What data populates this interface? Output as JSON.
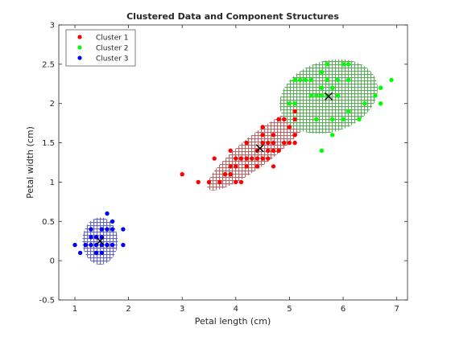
{
  "chart_data": {
    "type": "scatter",
    "title": "Clustered Data and Component Structures",
    "xlabel": "Petal length (cm)",
    "ylabel": "Petal width (cm)",
    "xlim": [
      0.7,
      7.2
    ],
    "ylim": [
      -0.5,
      3
    ],
    "xticks": [
      1,
      2,
      3,
      4,
      5,
      6,
      7
    ],
    "yticks": [
      -0.5,
      0,
      0.5,
      1,
      1.5,
      2,
      2.5,
      3
    ],
    "grid": false,
    "legend_position": "top-left",
    "series": [
      {
        "name": "Cluster 1",
        "color": "#ff0000",
        "points": [
          [
            3.0,
            1.1
          ],
          [
            3.3,
            1.0
          ],
          [
            3.5,
            1.0
          ],
          [
            3.6,
            1.3
          ],
          [
            3.7,
            1.0
          ],
          [
            3.8,
            1.1
          ],
          [
            3.9,
            1.1
          ],
          [
            3.9,
            1.2
          ],
          [
            3.9,
            1.4
          ],
          [
            4.0,
            1.0
          ],
          [
            4.0,
            1.2
          ],
          [
            4.0,
            1.3
          ],
          [
            4.1,
            1.0
          ],
          [
            4.1,
            1.3
          ],
          [
            4.2,
            1.2
          ],
          [
            4.2,
            1.3
          ],
          [
            4.2,
            1.5
          ],
          [
            4.3,
            1.3
          ],
          [
            4.4,
            1.2
          ],
          [
            4.4,
            1.3
          ],
          [
            4.4,
            1.4
          ],
          [
            4.5,
            1.3
          ],
          [
            4.5,
            1.5
          ],
          [
            4.5,
            1.6
          ],
          [
            4.5,
            1.7
          ],
          [
            4.6,
            1.3
          ],
          [
            4.6,
            1.4
          ],
          [
            4.6,
            1.5
          ],
          [
            4.7,
            1.2
          ],
          [
            4.7,
            1.4
          ],
          [
            4.7,
            1.5
          ],
          [
            4.7,
            1.6
          ],
          [
            4.8,
            1.4
          ],
          [
            4.8,
            1.8
          ],
          [
            4.9,
            1.5
          ],
          [
            4.9,
            1.8
          ],
          [
            5.0,
            1.5
          ],
          [
            5.0,
            1.7
          ],
          [
            5.1,
            1.5
          ],
          [
            5.1,
            1.6
          ],
          [
            5.1,
            1.9
          ],
          [
            5.1,
            1.8
          ]
        ]
      },
      {
        "name": "Cluster 2",
        "color": "#00ff00",
        "points": [
          [
            5.0,
            2.0
          ],
          [
            5.1,
            2.0
          ],
          [
            5.1,
            2.3
          ],
          [
            5.2,
            2.3
          ],
          [
            5.3,
            2.3
          ],
          [
            5.4,
            2.1
          ],
          [
            5.4,
            2.3
          ],
          [
            5.5,
            2.1
          ],
          [
            5.5,
            1.8
          ],
          [
            5.6,
            1.4
          ],
          [
            5.6,
            2.1
          ],
          [
            5.6,
            2.2
          ],
          [
            5.6,
            2.4
          ],
          [
            5.7,
            2.1
          ],
          [
            5.7,
            2.3
          ],
          [
            5.7,
            2.5
          ],
          [
            5.8,
            1.6
          ],
          [
            5.8,
            1.8
          ],
          [
            5.8,
            2.2
          ],
          [
            5.9,
            2.1
          ],
          [
            5.9,
            2.3
          ],
          [
            6.0,
            1.8
          ],
          [
            6.0,
            2.5
          ],
          [
            6.1,
            1.9
          ],
          [
            6.1,
            2.3
          ],
          [
            6.1,
            2.5
          ],
          [
            6.3,
            1.8
          ],
          [
            6.4,
            2.0
          ],
          [
            6.6,
            2.1
          ],
          [
            6.7,
            2.0
          ],
          [
            6.7,
            2.2
          ],
          [
            6.9,
            2.3
          ]
        ]
      },
      {
        "name": "Cluster 3",
        "color": "#0000ff",
        "points": [
          [
            1.0,
            0.2
          ],
          [
            1.1,
            0.1
          ],
          [
            1.2,
            0.2
          ],
          [
            1.3,
            0.2
          ],
          [
            1.3,
            0.3
          ],
          [
            1.3,
            0.4
          ],
          [
            1.4,
            0.1
          ],
          [
            1.4,
            0.2
          ],
          [
            1.4,
            0.3
          ],
          [
            1.5,
            0.1
          ],
          [
            1.5,
            0.2
          ],
          [
            1.5,
            0.3
          ],
          [
            1.5,
            0.4
          ],
          [
            1.6,
            0.2
          ],
          [
            1.6,
            0.4
          ],
          [
            1.6,
            0.6
          ],
          [
            1.7,
            0.2
          ],
          [
            1.7,
            0.4
          ],
          [
            1.7,
            0.5
          ],
          [
            1.9,
            0.2
          ],
          [
            1.9,
            0.4
          ]
        ]
      }
    ],
    "centroids": [
      {
        "x": 4.45,
        "y": 1.43
      },
      {
        "x": 5.73,
        "y": 2.09
      },
      {
        "x": 1.47,
        "y": 0.25
      }
    ],
    "components": [
      {
        "cx": 4.45,
        "cy": 1.43,
        "rx": 1.1,
        "ry": 0.22,
        "angle_deg": 27,
        "color": "#b86868"
      },
      {
        "cx": 5.73,
        "cy": 2.09,
        "rx": 0.92,
        "ry": 0.46,
        "angle_deg": 8,
        "color": "#5faa5f"
      },
      {
        "cx": 1.47,
        "cy": 0.25,
        "rx": 0.33,
        "ry": 0.3,
        "angle_deg": 0,
        "color": "#6666cc"
      }
    ]
  }
}
